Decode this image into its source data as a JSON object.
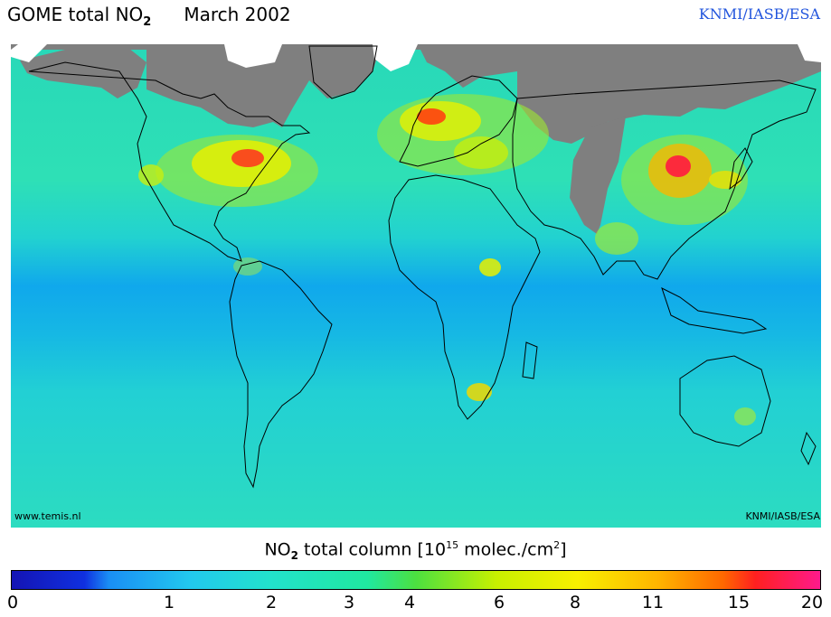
{
  "header": {
    "title_prefix": "GOME total NO",
    "title_sub": "2",
    "month": "March 2002",
    "credit": "KNMI/IASB/ESA"
  },
  "map": {
    "footer_left": "www.temis.nl",
    "footer_right": "KNMI/IASB/ESA",
    "no_data_color": "#7f7f7f",
    "coastline_color": "#000000"
  },
  "colorbar": {
    "label_prefix": "NO",
    "label_sub": "2",
    "label_mid": " total column [10",
    "label_sup_exp": "15",
    "label_unit": " molec./cm",
    "label_sup_unit": "2",
    "label_end": "]",
    "ticks": [
      "0",
      "1",
      "2",
      "3",
      "4",
      "6",
      "8",
      "11",
      "15",
      "20"
    ]
  }
}
